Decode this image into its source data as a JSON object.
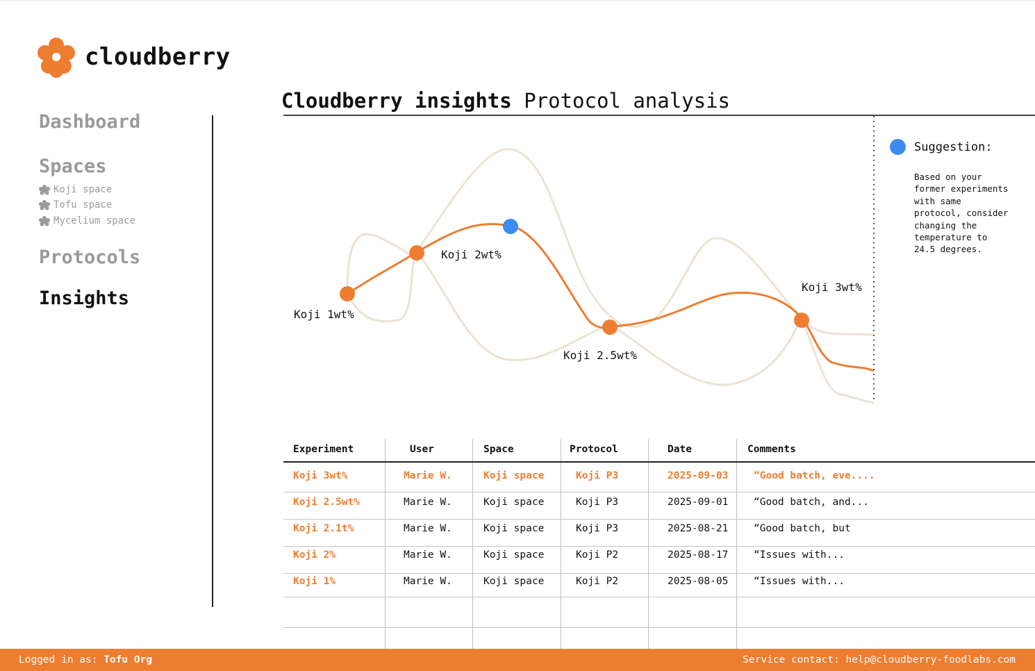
{
  "brand": {
    "name": "cloudberry",
    "accent_color": "#ed7d31"
  },
  "nav": {
    "items": [
      {
        "label": "Dashboard",
        "active": false
      },
      {
        "label": "Spaces",
        "active": false
      },
      {
        "label": "Protocols",
        "active": false
      },
      {
        "label": "Insights",
        "active": true
      }
    ],
    "spaces": [
      {
        "icon": "cluster-icon",
        "label": "Koji space"
      },
      {
        "icon": "cluster-icon",
        "label": "Tofu space"
      },
      {
        "icon": "cluster-icon",
        "label": "Mycelium space"
      }
    ]
  },
  "page": {
    "title_bold": "Cloudberry insights",
    "title_rest": "Protocol analysis"
  },
  "chart_data": {
    "type": "line",
    "title": "",
    "points": [
      {
        "label": "Koji 1wt%"
      },
      {
        "label": "Koji 2wt%"
      },
      {
        "label": ""
      },
      {
        "label": "Koji 2.5wt%"
      },
      {
        "label": "Koji 3wt%"
      }
    ],
    "series_color": "#ed7d31",
    "context_color": "#ece2d6",
    "suggestion_color": "#3d8bef"
  },
  "suggestion": {
    "title": "Suggestion:",
    "text": "Based on your\nformer experiments\nwith same\nprotocol, consider\nchanging the\ntemperature to\n24.5 degrees."
  },
  "table": {
    "headers": [
      "Experiment",
      "User",
      "Space",
      "Protocol",
      "Date",
      "Comments"
    ],
    "rows": [
      {
        "highlight": true,
        "cells": [
          "Koji 3wt%",
          "Marie W.",
          "Koji space",
          "Koji P3",
          "2025-09-03",
          "“Good batch, eve...."
        ]
      },
      {
        "highlight": false,
        "cells": [
          "Koji 2.5wt%",
          "Marie W.",
          "Koji space",
          "Koji P3",
          "2025-09-01",
          "“Good batch, and..."
        ]
      },
      {
        "highlight": false,
        "cells": [
          "Koji 2.1t%",
          "Marie W.",
          "Koji space",
          "Koji P3",
          "2025-08-21",
          "“Good batch, but"
        ]
      },
      {
        "highlight": false,
        "cells": [
          "Koji 2%",
          "Marie W.",
          "Koji space",
          "Koji P2",
          "2025-08-17",
          "“Issues with..."
        ]
      },
      {
        "highlight": false,
        "cells": [
          "Koji 1%",
          "Marie W.",
          "Koji space",
          "Koji P2",
          "2025-08-05",
          "“Issues with..."
        ]
      }
    ]
  },
  "footer": {
    "login_prefix": "Logged in as:",
    "login_org": "Tofu Org",
    "contact": "Service contact: help@cloudberry-foodlabs.com"
  }
}
